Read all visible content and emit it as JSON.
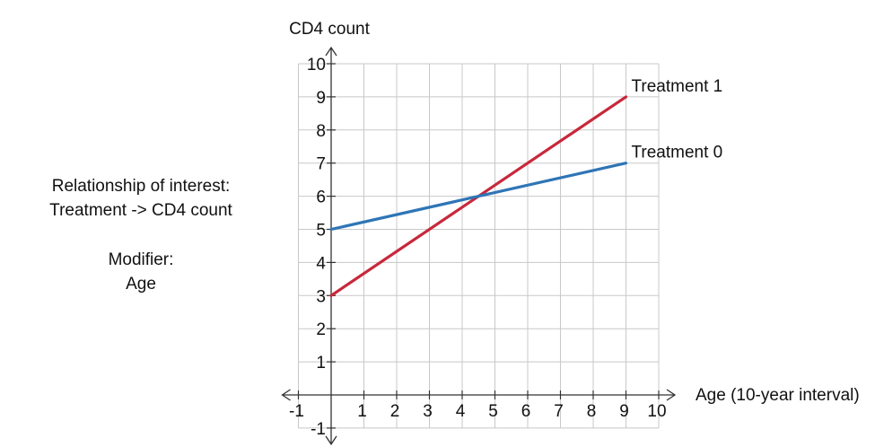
{
  "chart_data": {
    "type": "line",
    "ylabel": "CD4 count",
    "xlabel": "Age (10-year interval)",
    "xlim": [
      -1,
      10
    ],
    "ylim": [
      -1,
      10
    ],
    "x_ticks": [
      -1,
      1,
      2,
      3,
      4,
      5,
      6,
      7,
      8,
      9,
      10
    ],
    "y_ticks": [
      -1,
      1,
      2,
      3,
      4,
      5,
      6,
      7,
      8,
      9,
      10
    ],
    "grid": true,
    "series": [
      {
        "name": "Treatment 1",
        "color": "#c8283b",
        "x": [
          0,
          9
        ],
        "y": [
          3,
          9
        ]
      },
      {
        "name": "Treatment 0",
        "color": "#2e75b6",
        "x": [
          0,
          9
        ],
        "y": [
          5,
          7
        ]
      }
    ]
  },
  "annotations": {
    "relationship_line1": "Relationship of interest:",
    "relationship_line2": "Treatment -> CD4 count",
    "modifier_line1": "Modifier:",
    "modifier_line2": "Age"
  }
}
